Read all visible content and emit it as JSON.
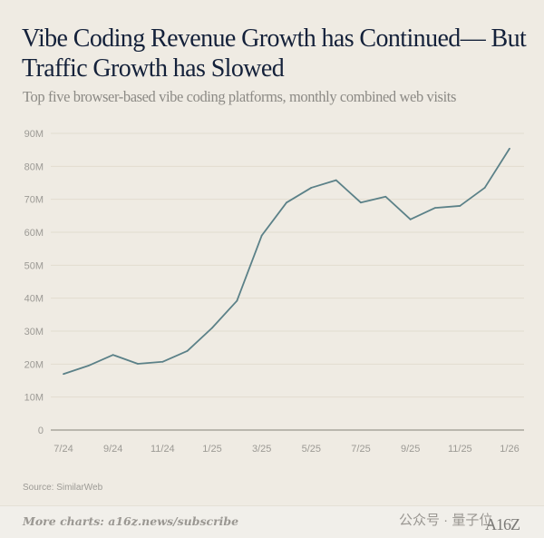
{
  "header": {
    "title": "Vibe Coding Revenue Growth has Continued— But Traffic Growth has Slowed",
    "subtitle": "Top five browser-based vibe coding platforms, monthly combined web visits"
  },
  "chart_data": {
    "type": "line",
    "title": "Vibe Coding Revenue Growth has Continued— But Traffic Growth has Slowed",
    "subtitle": "Top five browser-based vibe coding platforms, monthly combined web visits",
    "xlabel": "",
    "ylabel": "",
    "x": [
      "7/24",
      "8/24",
      "9/24",
      "10/24",
      "11/24",
      "12/24",
      "1/25",
      "2/25",
      "3/25",
      "4/25",
      "5/25",
      "6/25",
      "7/25",
      "8/25",
      "9/25",
      "10/25",
      "11/25",
      "12/25",
      "1/26"
    ],
    "x_tick_labels": [
      "7/24",
      "9/24",
      "11/24",
      "1/25",
      "3/25",
      "5/25",
      "7/25",
      "9/25",
      "11/25",
      "1/26"
    ],
    "y_tick_labels": [
      "0",
      "10M",
      "20M",
      "30M",
      "40M",
      "50M",
      "60M",
      "70M",
      "80M",
      "90M"
    ],
    "ylim": [
      0,
      90000000
    ],
    "grid": true,
    "series": [
      {
        "values": [
          17000000,
          19500000,
          22800000,
          20100000,
          20700000,
          24000000,
          31000000,
          39200000,
          59000000,
          69000000,
          73500000,
          75800000,
          69000000,
          70800000,
          63900000,
          67400000,
          68000000,
          73500000,
          85400000
        ],
        "color": "#5b8188"
      }
    ],
    "source": "Source: SimilarWeb"
  },
  "footer": {
    "more_charts": "More charts: a16z.news/subscribe",
    "watermark": "公众号 · 量子位",
    "logo": "A16Z"
  },
  "colors": {
    "background": "#efebe3",
    "line": "#5b8188",
    "title": "#14213a",
    "grid": "#e2dccf"
  }
}
